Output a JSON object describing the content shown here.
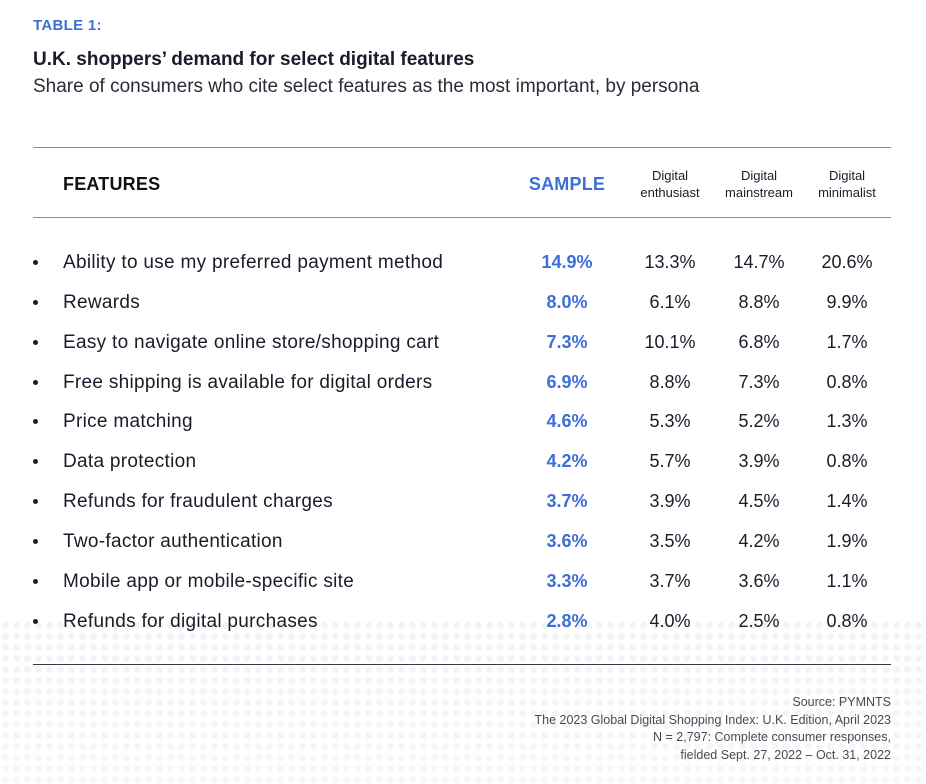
{
  "table_label": "TABLE 1:",
  "title": "U.K. shoppers’ demand for select digital features",
  "subtitle": "Share of consumers who cite select features as the most important, by persona",
  "header": {
    "features": "FEATURES",
    "sample": "SAMPLE",
    "enthusiast": [
      "Digital",
      "enthusiast"
    ],
    "mainstream": [
      "Digital",
      "mainstream"
    ],
    "minimalist": [
      "Digital",
      "minimalist"
    ]
  },
  "rows": [
    {
      "feature": "Ability to use my preferred payment method",
      "sample": "14.9%",
      "enthusiast": "13.3%",
      "mainstream": "14.7%",
      "minimalist": "20.6%"
    },
    {
      "feature": "Rewards",
      "sample": "8.0%",
      "enthusiast": "6.1%",
      "mainstream": "8.8%",
      "minimalist": "9.9%"
    },
    {
      "feature": "Easy to navigate online store/shopping cart",
      "sample": "7.3%",
      "enthusiast": "10.1%",
      "mainstream": "6.8%",
      "minimalist": "1.7%"
    },
    {
      "feature": "Free shipping is available for digital orders",
      "sample": "6.9%",
      "enthusiast": "8.8%",
      "mainstream": "7.3%",
      "minimalist": "0.8%"
    },
    {
      "feature": "Price matching",
      "sample": "4.6%",
      "enthusiast": "5.3%",
      "mainstream": "5.2%",
      "minimalist": "1.3%"
    },
    {
      "feature": "Data protection",
      "sample": "4.2%",
      "enthusiast": "5.7%",
      "mainstream": "3.9%",
      "minimalist": "0.8%"
    },
    {
      "feature": "Refunds for fraudulent charges",
      "sample": "3.7%",
      "enthusiast": "3.9%",
      "mainstream": "4.5%",
      "minimalist": "1.4%"
    },
    {
      "feature": "Two-factor authentication",
      "sample": "3.6%",
      "enthusiast": "3.5%",
      "mainstream": "4.2%",
      "minimalist": "1.9%"
    },
    {
      "feature": "Mobile app or mobile-specific site",
      "sample": "3.3%",
      "enthusiast": "3.7%",
      "mainstream": "3.6%",
      "minimalist": "1.1%"
    },
    {
      "feature": "Refunds for digital purchases",
      "sample": "2.8%",
      "enthusiast": "4.0%",
      "mainstream": "2.5%",
      "minimalist": "0.8%"
    }
  ],
  "source": [
    "Source: PYMNTS",
    "The 2023 Global Digital Shopping Index: U.K. Edition, April 2023",
    "N = 2,797: Complete consumer responses,",
    "fielded Sept. 27, 2022 – Oct. 31, 2022"
  ],
  "colors": {
    "accent": "#3d6fd8",
    "text": "#1b1b2a"
  }
}
